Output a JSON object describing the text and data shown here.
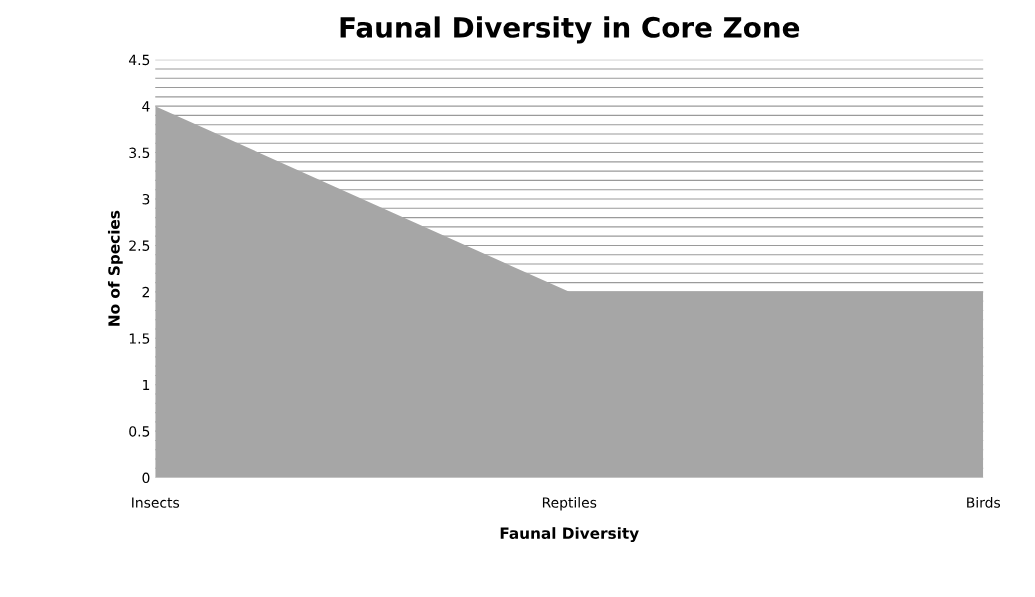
{
  "chart_data": {
    "type": "area",
    "title": "Faunal Diversity in Core Zone",
    "xlabel": "Faunal Diversity",
    "ylabel": "No of Species",
    "categories": [
      "Insects",
      "Reptiles",
      "Birds"
    ],
    "series": [
      {
        "color": "#a6a6a6",
        "values": [
          4,
          2,
          2
        ]
      }
    ],
    "ylim": [
      0,
      4.5
    ],
    "yticks": [
      0,
      0.5,
      1,
      1.5,
      2,
      2.5,
      3,
      3.5,
      4,
      4.5
    ],
    "grid": "y",
    "legend": false
  }
}
